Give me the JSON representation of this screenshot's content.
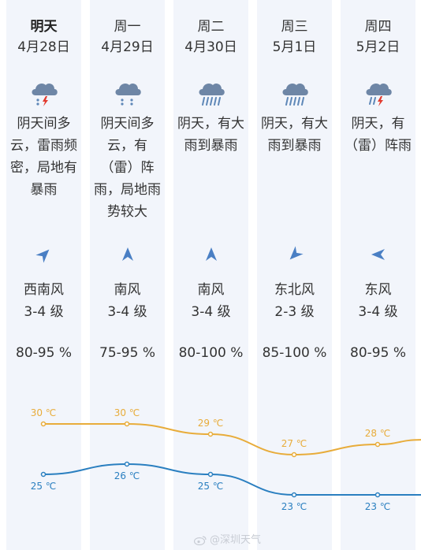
{
  "days": [
    {
      "day": "明天",
      "date": "4月28日",
      "weather_icon": "thunderstorm-icon",
      "condition_lines": [
        "阴天间多",
        "云，雷雨频",
        "密，局地有",
        "暴雨"
      ],
      "wind_direction": "西南风",
      "wind_icon": "wind-arrow-southwest-icon",
      "wind_level": "3-4 级",
      "humidity": "80-95 %"
    },
    {
      "day": "周一",
      "date": "4月29日",
      "weather_icon": "thunderstorm-icon",
      "condition_lines": [
        "阴天间多",
        "云，有",
        "（雷）阵",
        "雨，局地雨",
        "势较大"
      ],
      "wind_direction": "南风",
      "wind_icon": "wind-arrow-south-icon",
      "wind_level": "3-4 级",
      "humidity": "75-95 %"
    },
    {
      "day": "周二",
      "date": "4月30日",
      "weather_icon": "heavy-rain-icon",
      "condition_lines": [
        "阴天，有大",
        "雨到暴雨"
      ],
      "wind_direction": "南风",
      "wind_icon": "wind-arrow-south-icon",
      "wind_level": "3-4 级",
      "humidity": "80-100 %"
    },
    {
      "day": "周三",
      "date": "5月1日",
      "weather_icon": "heavy-rain-icon",
      "condition_lines": [
        "阴天，有大",
        "雨到暴雨"
      ],
      "wind_direction": "东北风",
      "wind_icon": "wind-arrow-northeast-icon",
      "wind_level": "2-3 级",
      "humidity": "85-100 %"
    },
    {
      "day": "周四",
      "date": "5月2日",
      "weather_icon": "thunderstorm-rain-icon",
      "condition_lines": [
        "阴天，有",
        "（雷）阵雨"
      ],
      "wind_direction": "东风",
      "wind_icon": "wind-arrow-east-icon",
      "wind_level": "3-4 级",
      "humidity": "80-95 %"
    }
  ],
  "temperatures": {
    "high": [
      30,
      30,
      29,
      27,
      28
    ],
    "low": [
      25,
      26,
      25,
      23,
      23
    ],
    "unit": "℃",
    "high_color": "#e8ac3a",
    "low_color": "#2a7fc0"
  },
  "colors": {
    "column_bg": "#f2f5fb",
    "cloud": "#6e86a6",
    "lightning": "#e23a2e",
    "rain": "#5f88b8",
    "wind_arrow": "#4a7fc4"
  },
  "watermark": "@深圳天气"
}
